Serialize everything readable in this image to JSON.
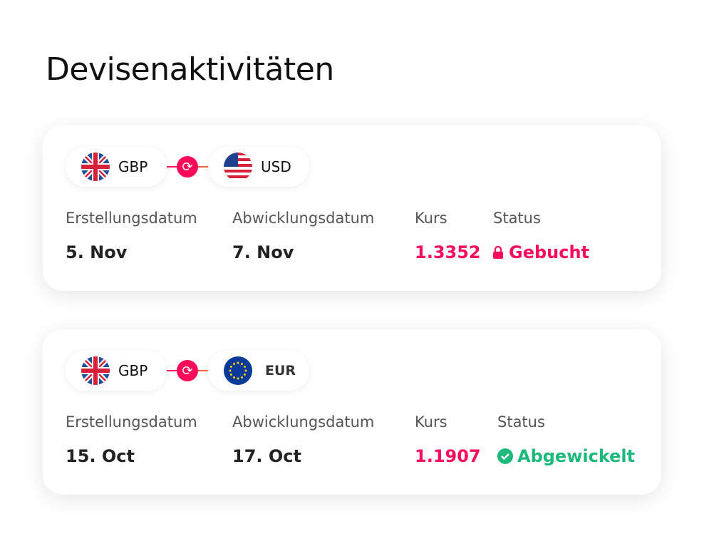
{
  "title": "Devisenaktivitäten",
  "labels": {
    "created": "Erstellungsdatum",
    "settle": "Abwicklungsdatum",
    "rate": "Kurs",
    "status": "Status"
  },
  "colors": {
    "accent": "#ff0a5a",
    "success": "#1db97a"
  },
  "trades": [
    {
      "from": "GBP",
      "to": "USD",
      "created": "5. Nov",
      "settled": "7. Nov",
      "rate": "1.3352",
      "status": "Gebucht",
      "status_icon": "lock-icon"
    },
    {
      "from": "GBP",
      "to": "EUR",
      "created": "15. Oct",
      "settled": "17. Oct",
      "rate": "1.1907",
      "status": "Abgewickelt",
      "status_icon": "check-circle-icon"
    }
  ]
}
